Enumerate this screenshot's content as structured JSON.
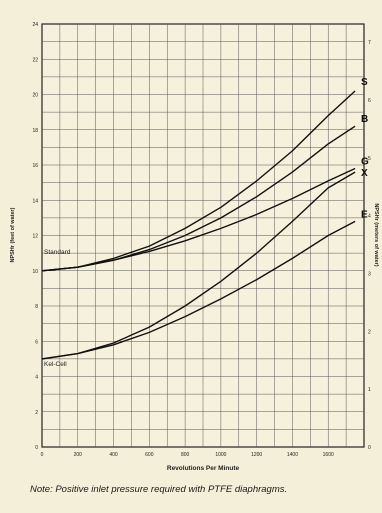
{
  "chart_data": {
    "type": "line",
    "xlabel": "Revolutions Per Minute",
    "ylabel_left": "NPSHr (feet of water)",
    "ylabel_right": "NPSHr (meters of water)",
    "x_ticks": [
      "0",
      "200",
      "400",
      "600",
      "800",
      "1000",
      "1200",
      "1400",
      "1600"
    ],
    "y_ticks_left": [
      "0",
      "2",
      "4",
      "6",
      "8",
      "10",
      "12",
      "14",
      "16",
      "18",
      "20",
      "22",
      "24"
    ],
    "y_ticks_right": [
      "0",
      "1",
      "2",
      "3",
      "4",
      "5",
      "6",
      "7"
    ],
    "xlim": [
      0,
      1800
    ],
    "ylim": [
      0,
      24
    ],
    "grid": true,
    "series": [
      {
        "name": "S",
        "x": [
          0,
          200,
          400,
          600,
          800,
          1000,
          1200,
          1400,
          1600,
          1750
        ],
        "y": [
          10.0,
          10.2,
          10.7,
          11.4,
          12.4,
          13.6,
          15.1,
          16.8,
          18.8,
          20.2
        ]
      },
      {
        "name": "B",
        "x": [
          0,
          200,
          400,
          600,
          800,
          1000,
          1200,
          1400,
          1600,
          1750
        ],
        "y": [
          10.0,
          10.2,
          10.6,
          11.2,
          12.0,
          13.0,
          14.2,
          15.6,
          17.2,
          18.2
        ]
      },
      {
        "name": "G",
        "x": [
          0,
          200,
          400,
          600,
          800,
          1000,
          1200,
          1400,
          1600,
          1750
        ],
        "y": [
          10.0,
          10.2,
          10.6,
          11.1,
          11.7,
          12.4,
          13.2,
          14.1,
          15.1,
          15.8
        ]
      },
      {
        "name": "X",
        "x": [
          0,
          200,
          400,
          600,
          800,
          1000,
          1200,
          1400,
          1600,
          1750
        ],
        "y": [
          5.0,
          5.3,
          5.9,
          6.8,
          8.0,
          9.4,
          11.0,
          12.8,
          14.7,
          15.6
        ]
      },
      {
        "name": "E",
        "x": [
          0,
          200,
          400,
          600,
          800,
          1000,
          1200,
          1400,
          1600,
          1750
        ],
        "y": [
          5.0,
          5.3,
          5.8,
          6.5,
          7.4,
          8.4,
          9.5,
          10.7,
          12.0,
          12.8
        ]
      }
    ],
    "annotations": [
      "Standard",
      "Kel-Cell"
    ]
  },
  "note": "Note: Positive inlet pressure required with PTFE diaphragms."
}
